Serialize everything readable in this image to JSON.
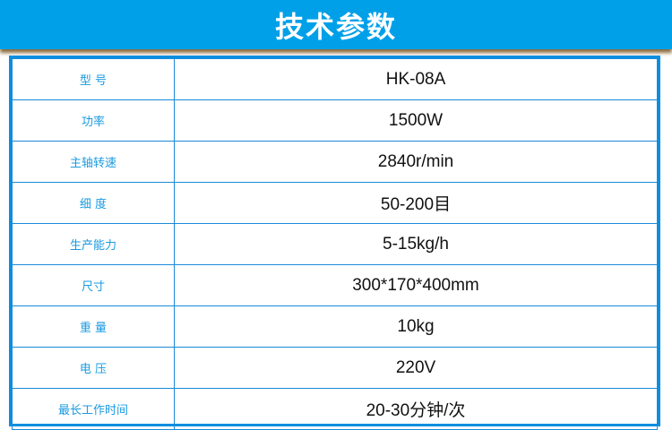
{
  "title": "技术参数",
  "specs": [
    {
      "label": "型 号",
      "value": "HK-08A"
    },
    {
      "label": "功率",
      "value": "1500W"
    },
    {
      "label": "主轴转速",
      "value": "2840r/min"
    },
    {
      "label": "细 度",
      "value": "50-200目"
    },
    {
      "label": "生产能力",
      "value": "5-15kg/h"
    },
    {
      "label": "尺寸",
      "value": "300*170*400mm"
    },
    {
      "label": "重 量",
      "value": "10kg"
    },
    {
      "label": "电 压",
      "value": "220V"
    },
    {
      "label": "最长工作时间",
      "value": "20-30分钟/次"
    }
  ],
  "colors": {
    "banner": "#00a0e9",
    "border": "#1a8ad8",
    "label": "#1a9be0"
  }
}
